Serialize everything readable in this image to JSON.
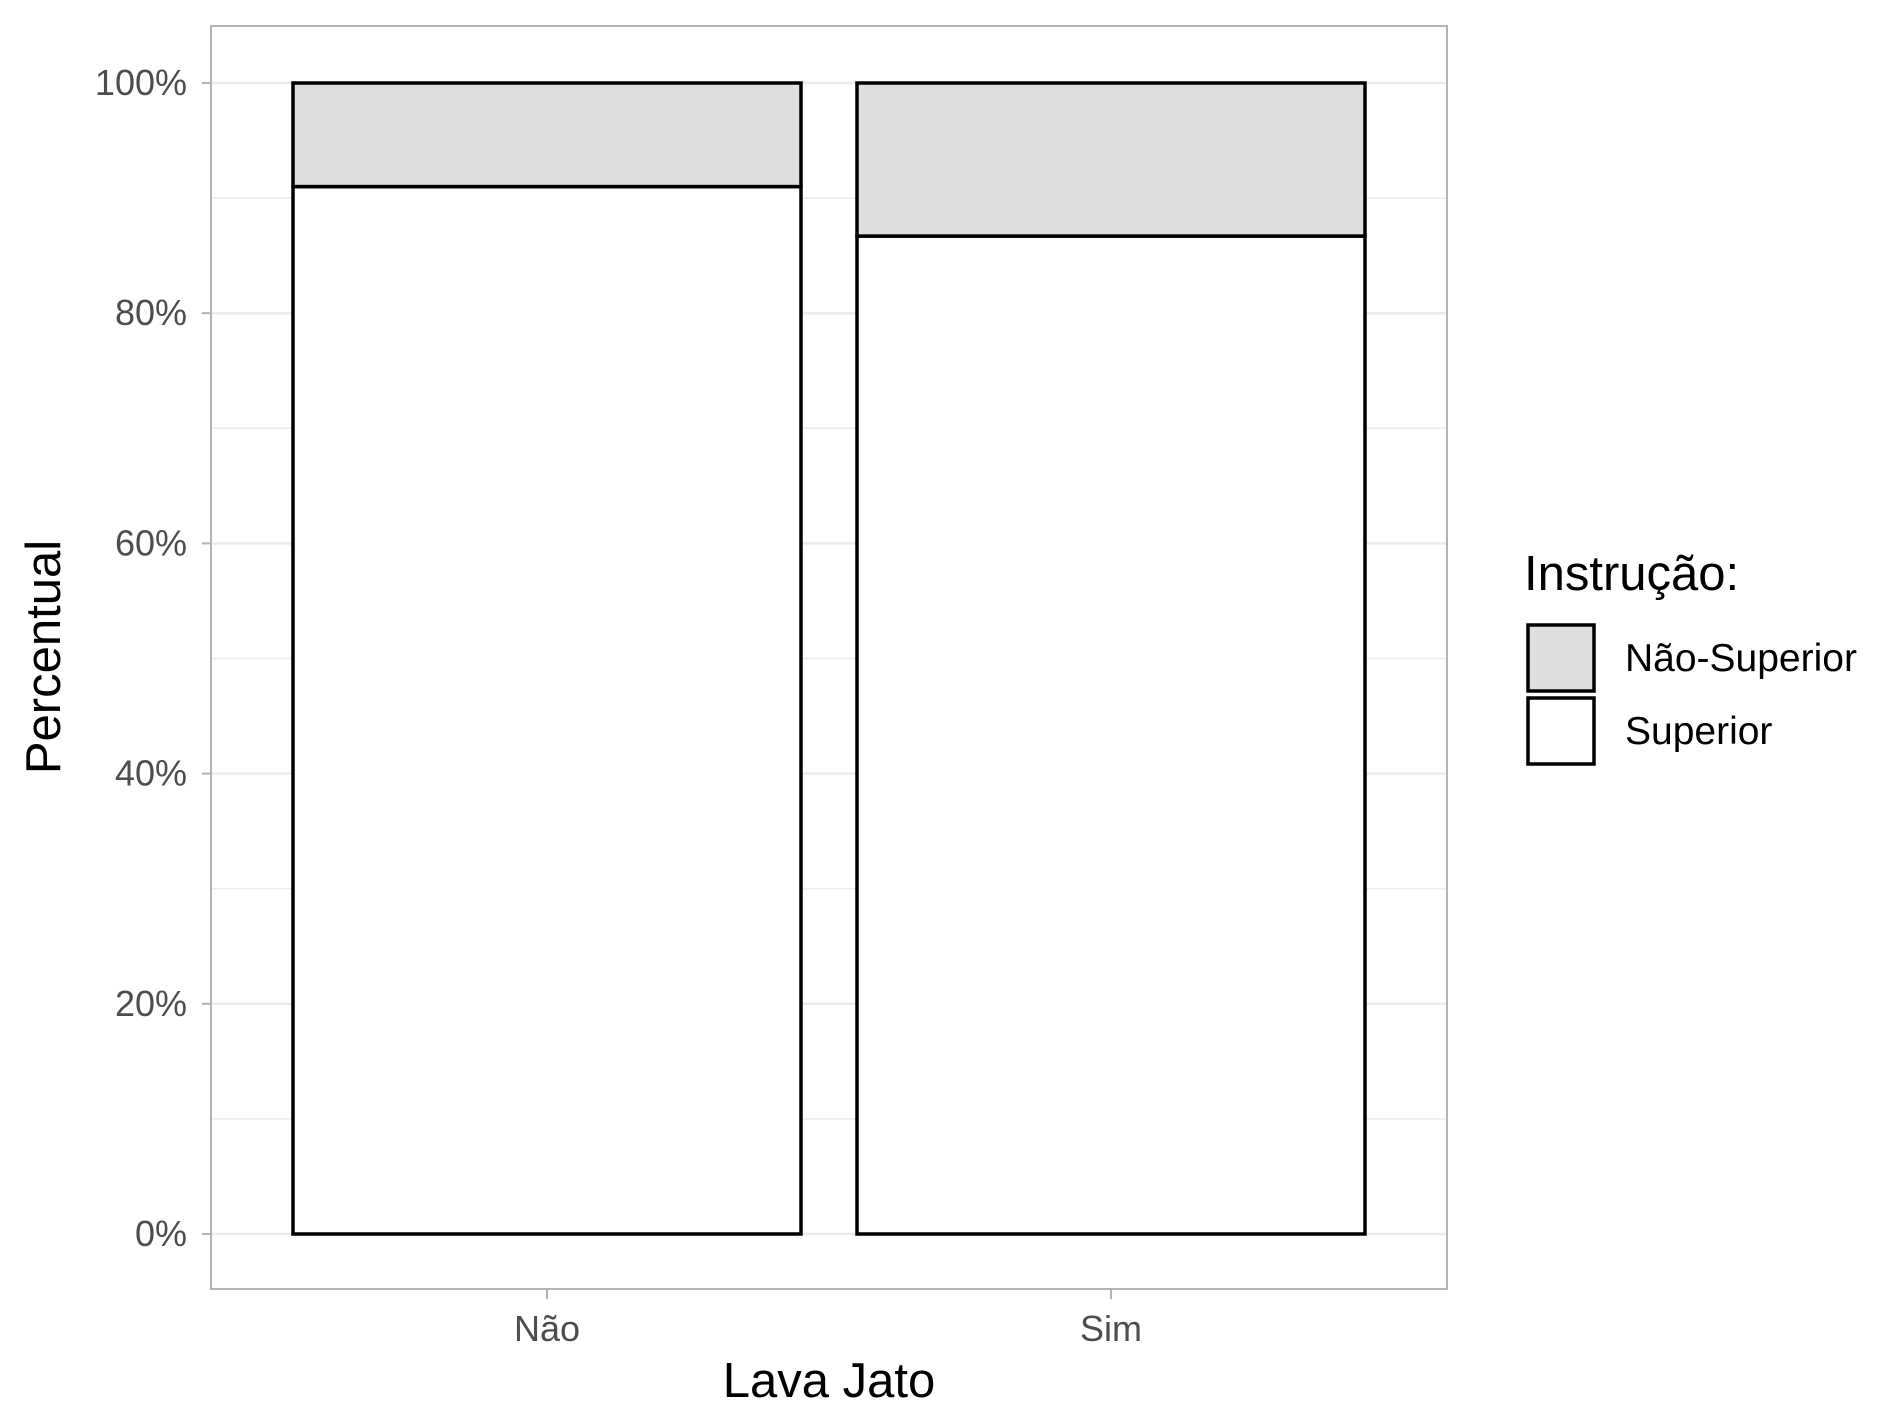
{
  "chart_data": {
    "type": "bar",
    "stacked": true,
    "normalized_percent": true,
    "xlabel": "Lava Jato",
    "ylabel": "Percentual",
    "categories": [
      "Não",
      "Sim"
    ],
    "ylim": [
      0,
      100
    ],
    "yticks": [
      "0%",
      "20%",
      "40%",
      "60%",
      "80%",
      "100%"
    ],
    "ytick_values": [
      0,
      20,
      40,
      60,
      80,
      100
    ],
    "grid": true,
    "series": [
      {
        "name": "Superior",
        "values": [
          91,
          86.7
        ],
        "color": "#ffffff"
      },
      {
        "name": "Não-Superior",
        "values": [
          9,
          13.3
        ],
        "color": "#dedede"
      }
    ],
    "legend": {
      "title": "Instrução:",
      "placement": "right",
      "entries": [
        {
          "label": "Não-Superior",
          "color": "#dedede"
        },
        {
          "label": "Superior",
          "color": "#ffffff"
        }
      ]
    },
    "colors": {
      "bar_outline": "#000000",
      "panel_border": "#b3b3b3",
      "grid": "#ebebeb"
    }
  }
}
